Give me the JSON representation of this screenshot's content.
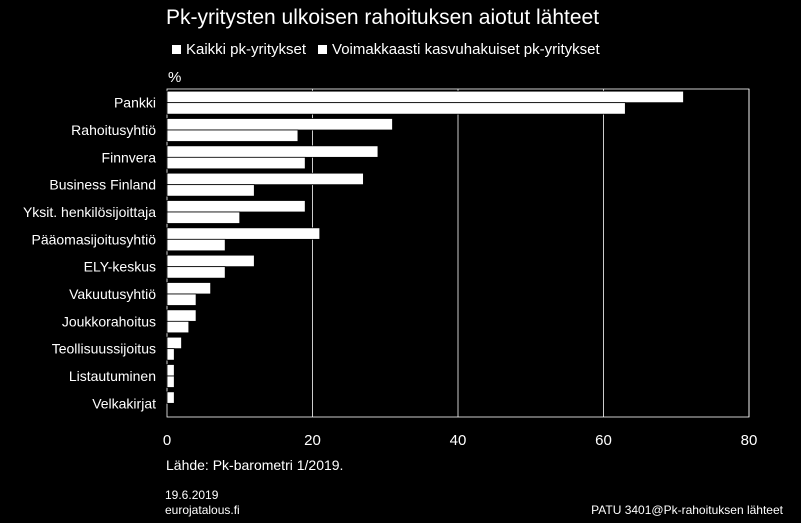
{
  "chart_data": {
    "type": "bar",
    "orientation": "horizontal",
    "title": "Pk-yritysten ulkoisen rahoituksen aiotut lähteet",
    "ylabel": "%",
    "categories": [
      "Pankki",
      "Rahoitusyhtiö",
      "Finnvera",
      "Business Finland",
      "Yksit. henkilösijoittaja",
      "Pääomasijoitusyhtiö",
      "ELY-keskus",
      "Vakuutusyhtiö",
      "Joukkorahoitus",
      "Teollisuussijoitus",
      "Listautuminen",
      "Velkakirjat"
    ],
    "series": [
      {
        "name": "Kaikki pk-yritykset",
        "values": [
          71,
          31,
          29,
          27,
          19,
          21,
          12,
          6,
          4,
          2,
          1,
          1
        ]
      },
      {
        "name": "Voimakkaasti kasvuhakuiset pk-yritykset",
        "values": [
          63,
          18,
          19,
          12,
          10,
          8,
          8,
          4,
          3,
          1,
          1,
          0
        ]
      }
    ],
    "xlim": [
      0,
      80
    ],
    "xticks": [
      0,
      20,
      40,
      60,
      80
    ],
    "grid": true,
    "legend": "top",
    "colors": {
      "background": "#000000",
      "bars": "#ffffff",
      "gridlines": "#ffffff"
    }
  },
  "source": "Lähde: Pk-barometri 1/2019.",
  "footer": {
    "date": "19.6.2019",
    "site": "eurojatalous.fi",
    "code": "PATU 3401@Pk-rahoituksen lähteet"
  }
}
